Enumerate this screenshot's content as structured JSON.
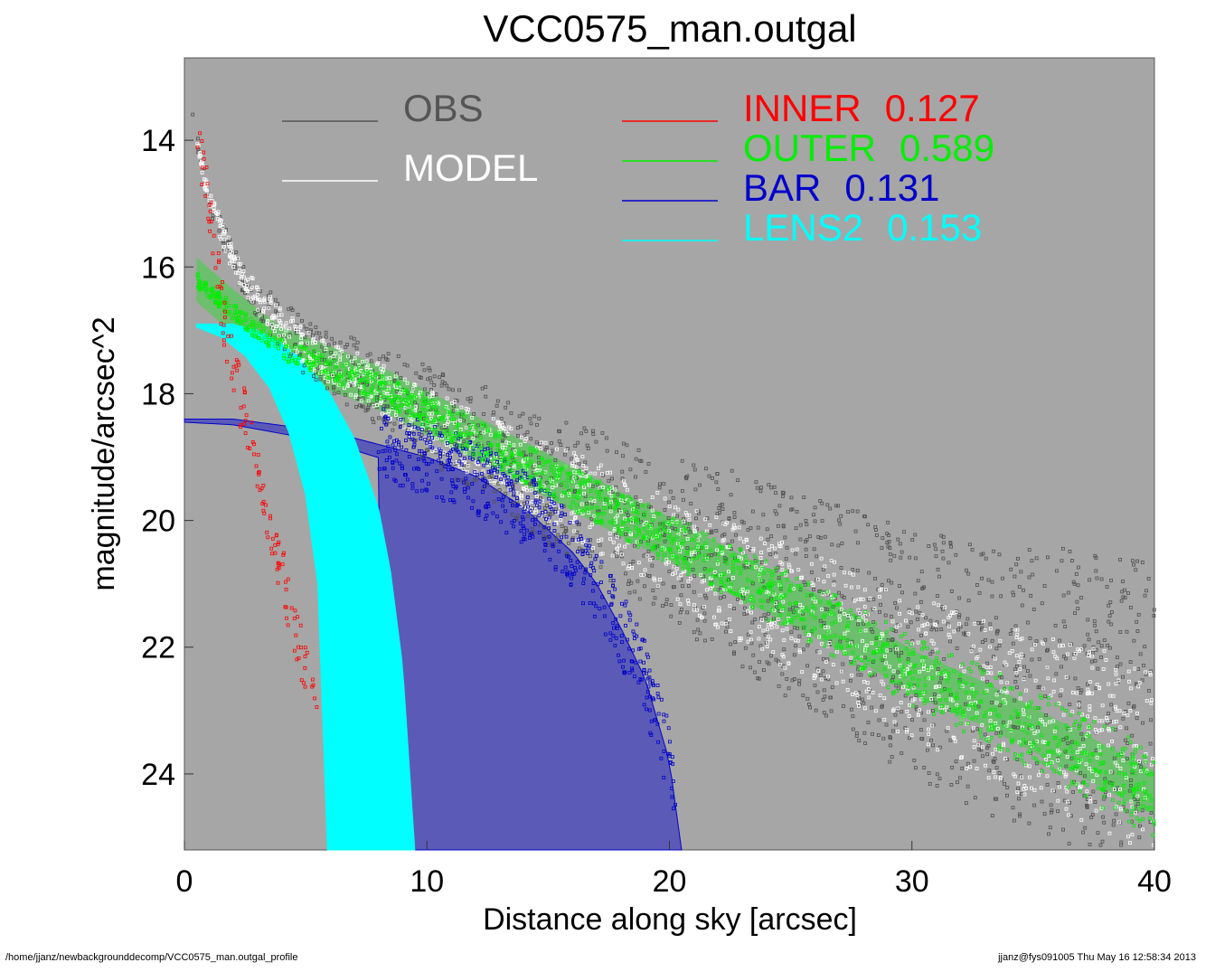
{
  "chart_data": {
    "type": "scatter",
    "title": "VCC0575_man.outgal",
    "xlabel": "Distance along sky [arcsec]",
    "ylabel": "magnitude/arcsec^2",
    "xlim": [
      0,
      40
    ],
    "ylim": [
      25.2,
      12.7
    ],
    "y_inverted": true,
    "x_ticks": [
      0,
      10,
      20,
      30,
      40
    ],
    "y_ticks": [
      14,
      16,
      18,
      20,
      22,
      24
    ],
    "grid": false,
    "background_color": "#a6a6a6",
    "legend": [
      {
        "name": "OBS",
        "value": "",
        "color": "#555555"
      },
      {
        "name": "MODEL",
        "value": "",
        "color": "#ffffff"
      },
      {
        "name": "INNER",
        "value": "0.127",
        "color": "#ff0000"
      },
      {
        "name": "OUTER",
        "value": "0.589",
        "color": "#00ee00"
      },
      {
        "name": "BAR",
        "value": "0.131",
        "color": "#0000cc"
      },
      {
        "name": "LENS2",
        "value": "0.153",
        "color": "#00ffff"
      }
    ],
    "series": [
      {
        "key": "obs",
        "color": "#505050",
        "x": [
          0.3,
          0.5,
          1,
          2,
          3,
          5,
          8,
          10,
          13,
          16,
          18,
          20,
          22,
          25,
          28,
          30,
          33,
          36,
          38,
          40
        ],
        "y": [
          13.5,
          14.0,
          15.0,
          15.9,
          16.5,
          17.3,
          17.9,
          18.3,
          18.9,
          19.6,
          19.9,
          20.3,
          20.6,
          21.2,
          21.7,
          22.1,
          22.5,
          22.7,
          23.0,
          23.2
        ]
      },
      {
        "key": "model",
        "color": "#ffffff",
        "x": [
          0.5,
          1,
          2,
          3,
          5,
          8,
          10,
          13,
          16,
          18,
          20,
          22,
          25,
          28,
          30,
          33,
          36,
          38,
          40
        ],
        "y": [
          14.0,
          14.9,
          15.9,
          16.5,
          17.3,
          17.9,
          18.4,
          19.0,
          19.6,
          20.0,
          20.4,
          20.8,
          21.4,
          21.9,
          22.3,
          22.8,
          23.2,
          23.5,
          23.8
        ]
      },
      {
        "key": "inner",
        "color": "#ff0000",
        "x": [
          0.5,
          1,
          1.5,
          2,
          2.5,
          3,
          3.5,
          4,
          4.5,
          5,
          5.5
        ],
        "y": [
          14.0,
          15.0,
          16.5,
          17.6,
          18.4,
          19.2,
          20.0,
          20.8,
          21.6,
          22.4,
          23.2
        ]
      },
      {
        "key": "outer",
        "color": "#00ee00",
        "x": [
          0.5,
          2,
          4,
          6,
          8,
          10,
          12,
          15,
          18,
          20,
          22,
          25,
          28,
          30,
          33,
          36,
          38,
          40
        ],
        "y": [
          16.2,
          16.7,
          17.3,
          17.6,
          17.9,
          18.3,
          18.7,
          19.3,
          19.9,
          20.3,
          20.7,
          21.3,
          21.9,
          22.4,
          22.9,
          23.5,
          23.9,
          24.3
        ]
      },
      {
        "key": "bar",
        "color": "#0000cc",
        "x": [
          0,
          2,
          4,
          6,
          8,
          10,
          12,
          14,
          16,
          17,
          18,
          19,
          20,
          20.5
        ],
        "y": [
          18.4,
          18.4,
          18.5,
          18.6,
          18.8,
          19.0,
          19.3,
          19.8,
          20.5,
          21.0,
          21.7,
          22.5,
          23.8,
          25.2
        ]
      },
      {
        "key": "lens2",
        "color": "#00ffff",
        "x": [
          0.5,
          2,
          3,
          4,
          5,
          6,
          7,
          8,
          8.5,
          9,
          9.5
        ],
        "y": [
          16.9,
          16.9,
          17.0,
          17.2,
          17.5,
          18.0,
          18.7,
          19.8,
          20.8,
          22.3,
          25.2
        ]
      }
    ]
  },
  "footer": {
    "left": "/home/jjanz/newbackgrounddecomp/VCC0575_man.outgal_profile",
    "right": "jjanz@fys091005  Thu May 16 12:58:34 2013"
  }
}
